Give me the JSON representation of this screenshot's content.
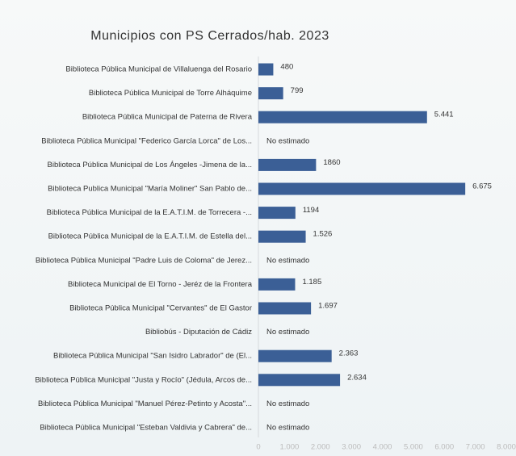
{
  "chart_data": {
    "type": "bar",
    "orientation": "horizontal",
    "title": "Municipios con PS Cerrados/hab. 2023",
    "categories": [
      "Biblioteca Pública Municipal de Villaluenga del Rosario",
      "Biblioteca Pública Municipal de Torre Alháquime",
      "Biblioteca Pública Municipal de Paterna de Rivera",
      "Biblioteca Pública Municipal \"Federico García Lorca\" de Los...",
      "Biblioteca Pública Municipal de Los Ángeles -Jimena de la...",
      "Biblioteca Publica Municipal \"María Moliner\" San Pablo de...",
      "Biblioteca Pública Municipal de la E.A.T.I.M. de Torrecera -...",
      "Biblioteca Pública Municipal de la E.A.T.I.M. de Estella del...",
      "Biblioteca Pública Municipal \"Padre Luis de Coloma\" de Jerez...",
      "Biblioteca Municipal de El Torno - Jeréz de la Frontera",
      "Biblioteca Pública Municipal \"Cervantes\" de El Gastor",
      "Bibliobús - Diputación de Cádiz",
      "Biblioteca Pública Municipal \"San Isidro Labrador\" de (El...",
      "Biblioteca Pública Municipal \"Justa y Rocío\" (Jédula, Arcos de...",
      "Biblioteca Pública Municipal \"Manuel Pérez-Petinto y Acosta\"...",
      "Biblioteca Pública Municipal \"Esteban Valdivia y Cabrera\" de..."
    ],
    "values": [
      480,
      799,
      5441,
      null,
      1860,
      6675,
      1194,
      1526,
      null,
      1185,
      1697,
      null,
      2363,
      2634,
      null,
      null
    ],
    "value_labels": [
      "480",
      "799",
      "5.441",
      "No estimado",
      "1860",
      "6.675",
      "1194",
      "1.526",
      "No estimado",
      "1.185",
      "1.697",
      "No estimado",
      "2.363",
      "2.634",
      "No estimado",
      "No estimado"
    ],
    "color": "#3b5f96",
    "xlim": [
      0,
      8000
    ],
    "xticks": [
      0,
      {
        "value": 1000,
        "label": "1.000"
      },
      {
        "value": 2000,
        "label": "2.000"
      },
      {
        "value": 3000,
        "label": "3.000"
      },
      {
        "value": 4000,
        "label": "4.000"
      },
      {
        "value": 5000,
        "label": "5.000"
      },
      {
        "value": 6000,
        "label": "6.000"
      },
      {
        "value": 7000,
        "label": "7.000"
      },
      {
        "value": 8000,
        "label": "8.000"
      }
    ]
  }
}
